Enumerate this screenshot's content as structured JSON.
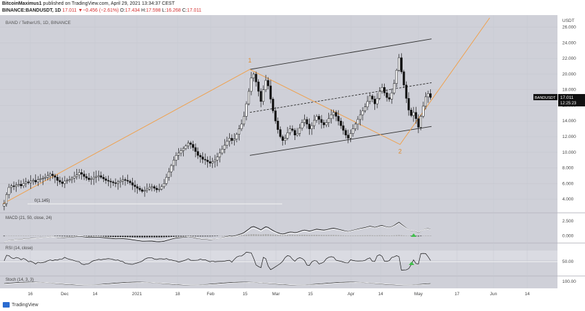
{
  "header": {
    "author": "BitcoinMaximus1",
    "published_text": "published on TradingView.com, April 29, 2021 13:34:37 CEST",
    "symbol_line": "BINANCE:BANDUSDT, 1D",
    "last": "17.011",
    "change": "▼−0.456 (−2.61%)",
    "open_label": "O:",
    "open": "17.434",
    "high_label": "H:",
    "high": "17.598",
    "low_label": "L:",
    "low": "16.268",
    "close_label": "C:",
    "close": "17.011"
  },
  "chart_data": {
    "type": "candlestick",
    "title": "BAND / TetherUS, 1D, BINANCE",
    "quote_unit": "USDT",
    "price_axis": {
      "ticks": [
        "26.000",
        "24.000",
        "22.000",
        "20.000",
        "18.000",
        "16.000",
        "14.000",
        "12.000",
        "10.000",
        "8.000",
        "6.000",
        "4.000"
      ],
      "ylim": [
        2.6,
        27.2
      ]
    },
    "time_axis": {
      "ticks": [
        "16",
        "Dec",
        "14",
        "2021",
        "18",
        "Feb",
        "15",
        "Mar",
        "15",
        "Apr",
        "14",
        "May",
        "17",
        "Jun",
        "14"
      ]
    },
    "last_price_tag": {
      "symbol": "BANDUSDT",
      "price": "17.011",
      "countdown": "12:25:23"
    },
    "fib_label": "0(1.145)",
    "wave_labels": [
      {
        "label": "1",
        "date": "2021-02-15",
        "price": 20.6
      },
      {
        "label": "2",
        "date": "2021-04-18",
        "price": 11.0
      }
    ],
    "channel": {
      "upper": [
        [
          "2021-02-15",
          20.6
        ],
        [
          "2021-05-01",
          24.5
        ]
      ],
      "lower": [
        [
          "2021-02-15",
          9.6
        ],
        [
          "2021-05-01",
          13.3
        ]
      ],
      "mid": [
        [
          "2021-02-15",
          15.1
        ],
        [
          "2021-05-01",
          18.9
        ]
      ]
    },
    "orange_path": [
      [
        "2020-11-05",
        3.4
      ],
      [
        "2021-02-15",
        20.6
      ],
      [
        "2021-04-18",
        11.0
      ],
      [
        "2021-05-25",
        27.2
      ]
    ],
    "closes": [
      3.4,
      4.6,
      5.5,
      5.7,
      5.6,
      5.8,
      5.9,
      5.7,
      6.0,
      6.2,
      6.1,
      6.3,
      6.4,
      6.2,
      6.5,
      6.6,
      6.7,
      6.8,
      7.0,
      7.2,
      7.0,
      6.8,
      6.4,
      6.2,
      6.0,
      6.3,
      6.4,
      6.5,
      6.7,
      6.9,
      7.1,
      7.4,
      7.2,
      6.9,
      6.7,
      6.5,
      6.6,
      6.8,
      6.9,
      7.0,
      6.8,
      6.6,
      6.4,
      6.3,
      6.2,
      6.1,
      6.0,
      6.2,
      6.3,
      6.5,
      6.4,
      6.3,
      6.1,
      5.8,
      5.6,
      5.4,
      5.2,
      5.0,
      5.1,
      5.3,
      5.5,
      5.6,
      5.4,
      5.2,
      5.3,
      5.6,
      6.0,
      6.8,
      7.5,
      8.3,
      9.0,
      9.6,
      9.9,
      10.2,
      10.5,
      10.8,
      11.2,
      11.0,
      10.6,
      10.1,
      9.6,
      9.4,
      9.1,
      9.0,
      8.8,
      8.6,
      8.8,
      9.0,
      9.4,
      9.9,
      10.4,
      10.9,
      11.4,
      11.8,
      11.5,
      11.7,
      12.3,
      13.0,
      13.6,
      14.6,
      16.2,
      17.8,
      19.5,
      20.0,
      19.0,
      17.8,
      16.5,
      18.0,
      19.2,
      18.5,
      16.8,
      15.3,
      14.0,
      12.9,
      12.0,
      11.5,
      11.8,
      12.5,
      13.0,
      12.8,
      12.2,
      12.4,
      13.1,
      13.8,
      14.2,
      13.6,
      13.0,
      13.4,
      14.1,
      14.6,
      14.2,
      13.8,
      13.5,
      13.8,
      14.3,
      14.8,
      15.1,
      14.6,
      14.0,
      13.4,
      12.8,
      12.2,
      11.8,
      12.4,
      13.0,
      13.6,
      14.2,
      14.8,
      15.3,
      15.8,
      16.5,
      17.2,
      16.8,
      16.2,
      16.9,
      17.8,
      18.3,
      17.6,
      17.0,
      16.8,
      17.6,
      18.8,
      20.5,
      22.1,
      20.3,
      18.6,
      16.9,
      15.4,
      14.7,
      15.1,
      14.3,
      13.2,
      14.6,
      15.9,
      17.1,
      17.5,
      17.011
    ],
    "macd": {
      "label": "MACD (21, 50, close, 24)",
      "ticks": [
        "2.500",
        "0.000"
      ],
      "ylim": [
        -1.0,
        3.7
      ]
    },
    "rsi": {
      "label": "RSI (14, close)",
      "ticks": [
        "50.00"
      ],
      "ylim": [
        20,
        90
      ]
    },
    "stoch": {
      "label": "Stoch (14, 3, 3)",
      "ticks": [
        "100.00"
      ],
      "ylim": [
        0,
        170
      ]
    }
  },
  "footer": {
    "brand": "TradingView"
  }
}
